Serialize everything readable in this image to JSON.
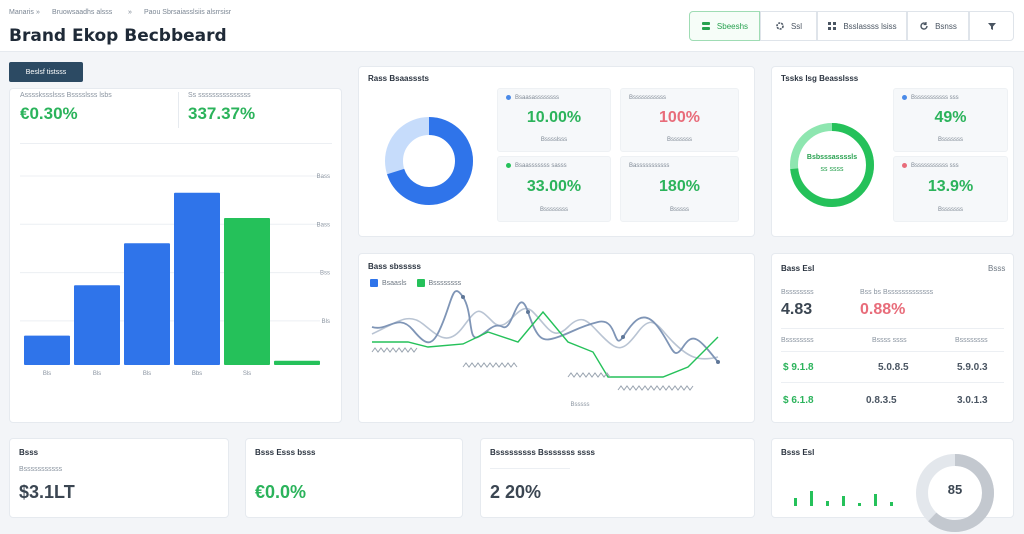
{
  "header": {
    "crumbs": [
      "Manaris",
      "Bruowsaadhs alsss",
      "Paou Sbrsaiasslsiis alsrrsisr"
    ],
    "title": "Brand Ekop Becbbeard",
    "buttons": [
      {
        "label": "Sbeeshs",
        "icon": "stack-icon",
        "active": true
      },
      {
        "label": "Ssl",
        "icon": "settings-icon",
        "active": false
      },
      {
        "label": "Bsslassss lsiss",
        "icon": "grid-icon",
        "active": false
      },
      {
        "label": "Bsnss",
        "icon": "refresh-icon",
        "active": false
      },
      {
        "label": "",
        "icon": "filter-icon",
        "active": false
      }
    ]
  },
  "left_panel": {
    "tab_label": "Beslsf tistsss",
    "stat1_label": "Asssskssslsss Bsssslsss lsbs",
    "stat1_value": "€0.30%",
    "stat2_label": "Ss sssssssssssssss",
    "stat2_value": "337.37%",
    "x_labels": [
      "Bls",
      "Bls",
      "Bls",
      "Bbs",
      "Sls"
    ],
    "y_labels": [
      "Bass",
      "Bass",
      "Bss",
      "Bls"
    ]
  },
  "chart_data": {
    "type": "bar",
    "categories": [
      "Bls",
      "Bls",
      "Bls",
      "Bbs",
      "Sls",
      ""
    ],
    "values": [
      14,
      38,
      58,
      82,
      70,
      2
    ],
    "colors": [
      "#2f74ea",
      "#2f74ea",
      "#2f74ea",
      "#2f74ea",
      "#25c15a",
      "#25c15a"
    ],
    "ylim": [
      0,
      100
    ]
  },
  "donut_card": {
    "title": "Rass Bsaasssts",
    "share": 0.7,
    "colors": {
      "main": "#2f74ea",
      "rest": "#c6dcfb"
    },
    "stats": [
      {
        "label": "Bsaasassssssss",
        "value": "10.00%",
        "sub": "Bsssslsss",
        "dot": "#4a8ae8",
        "color": "#2bb35b"
      },
      {
        "label": "Bsssssssssss",
        "value": "100%",
        "sub": "Bsssssss",
        "dot": "",
        "color": "#e86c7a"
      },
      {
        "label": "Bsaasssssss sasss",
        "value": "33.00%",
        "sub": "Bssssssss",
        "dot": "#25c15a",
        "color": "#2bb35b"
      },
      {
        "label": "Basssssssssss",
        "value": "180%",
        "sub": "Bsssss",
        "dot": "",
        "color": "#2bb35b"
      }
    ]
  },
  "ring_card": {
    "title": "Tssks Isg Beasslsss",
    "ring_text_1": "Bsbsssassssls",
    "ring_text_2": "ss ssss",
    "colors": {
      "main": "#25c15a",
      "light": "#8ee6b0"
    },
    "stats": [
      {
        "label": "Bsssssssssss sss",
        "value": "49%",
        "sub": "Bsssssss",
        "dot": "#4a8ae8",
        "color": "#2bb35b"
      },
      {
        "label": "Bsssssssssss sss",
        "value": "13.9%",
        "sub": "Bsssssss",
        "dot": "#e86c7a",
        "color": "#2bb35b"
      }
    ]
  },
  "line_card": {
    "title": "Bass sbsssss",
    "legend": [
      {
        "name": "Bsaasls",
        "color": "#2f74ea"
      },
      {
        "name": "Bssssssss",
        "color": "#25c15a"
      }
    ],
    "x_label": "Bsssss"
  },
  "metrics_card": {
    "title": "Bass Esl",
    "corner": "Bsss",
    "head_left_label": "Bssssssss",
    "head_left_value": "4.83",
    "head_right_label": "Bss bs Bsssssssssssss",
    "head_right_value": "0.88%",
    "columns": [
      "Bssssssss",
      "Bssss ssss",
      "Bssssssss"
    ],
    "rows": [
      [
        "$ 9.1.8",
        "5.0.8.5",
        "5.9.0.3"
      ],
      [
        "$ 6.1.8",
        "0.8.3.5",
        "3.0.1.3"
      ]
    ]
  },
  "bottom": {
    "card1_title": "Bsss",
    "card1_label": "Bsssssssssss",
    "card1_value": "$3.1LT",
    "card2_title": "Bsss Esss bsss",
    "card2_value": "€0.0%",
    "card3_title": "Bsssssssss Bsssssss ssss",
    "card3_value": "2 20%",
    "card4_title": "Bsss Esl",
    "card4_value": "85",
    "bars_values": [
      8,
      15,
      5,
      10,
      3,
      12,
      4
    ],
    "gauge_share": 0.62
  }
}
